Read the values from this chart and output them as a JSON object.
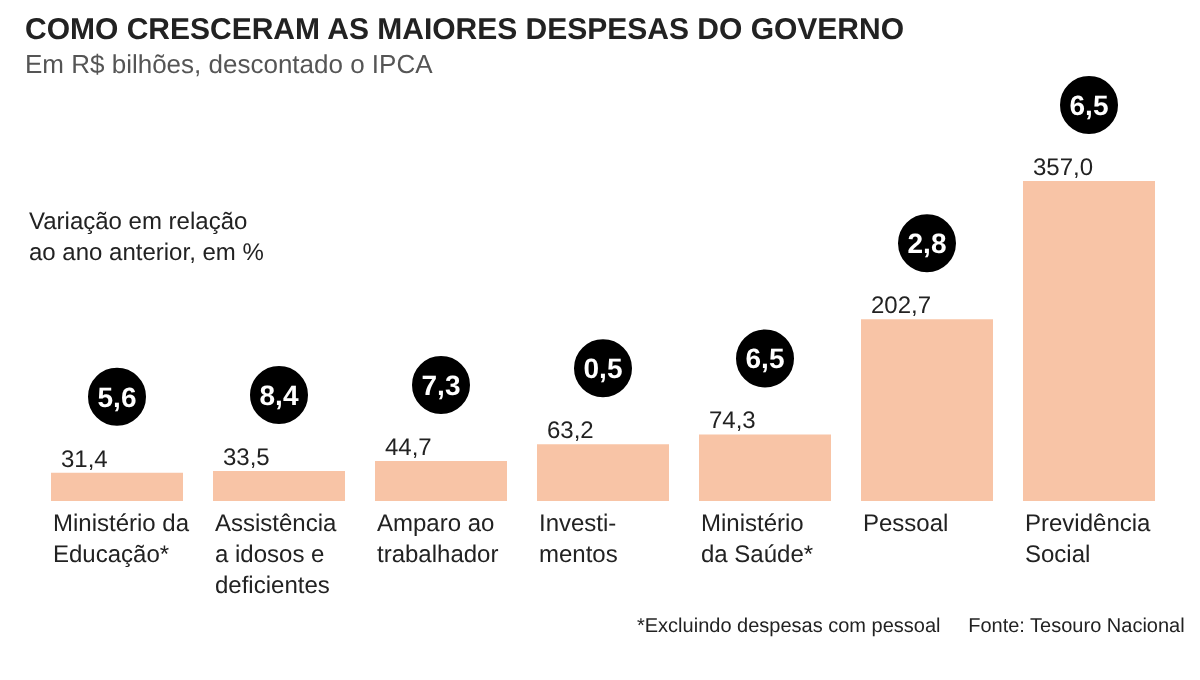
{
  "chart_data": {
    "type": "bar",
    "title": "COMO CRESCERAM AS MAIORES DESPESAS DO GOVERNO",
    "subtitle": "Em R$ bilhões, descontado o IPCA",
    "categories": [
      "Ministério da\nEducação*",
      "Assistência\na idosos e\ndeficientes",
      "Amparo ao\ntrabalhador",
      "Investi-\nmentos",
      "Ministério\nda Saúde*",
      "Pessoal",
      "Previdência\nSocial"
    ],
    "values": [
      31.4,
      33.5,
      44.7,
      63.2,
      74.3,
      202.7,
      357.0
    ],
    "value_labels": [
      "31,4",
      "33,5",
      "44,7",
      "63,2",
      "74,3",
      "202,7",
      "357,0"
    ],
    "color": "#f8c4a6",
    "annotations": [
      "Variação em relação\nao ano anterior, em %",
      {
        "text": "5,6",
        "x": "Ministério da\nEducação*",
        "y": 31.4
      },
      {
        "text": "8,4",
        "x": "Assistência\na idosos e\ndeficientes",
        "y": 33.5
      },
      {
        "text": "7,3",
        "x": "Amparo ao\ntrabalhador",
        "y": 44.7
      },
      {
        "text": "0,5",
        "x": "Investi-\nmentos",
        "y": 63.2
      },
      {
        "text": "6,5",
        "x": "Ministério\nda Saúde*",
        "y": 74.3
      },
      {
        "text": "2,8",
        "x": "Pessoal",
        "y": 202.7
      },
      {
        "text": "6,5",
        "x": "Previdência\nSocial",
        "y": 357.0
      },
      "*Excluindo despesas com pessoal",
      "Fonte: Tesouro Nacional"
    ]
  }
}
